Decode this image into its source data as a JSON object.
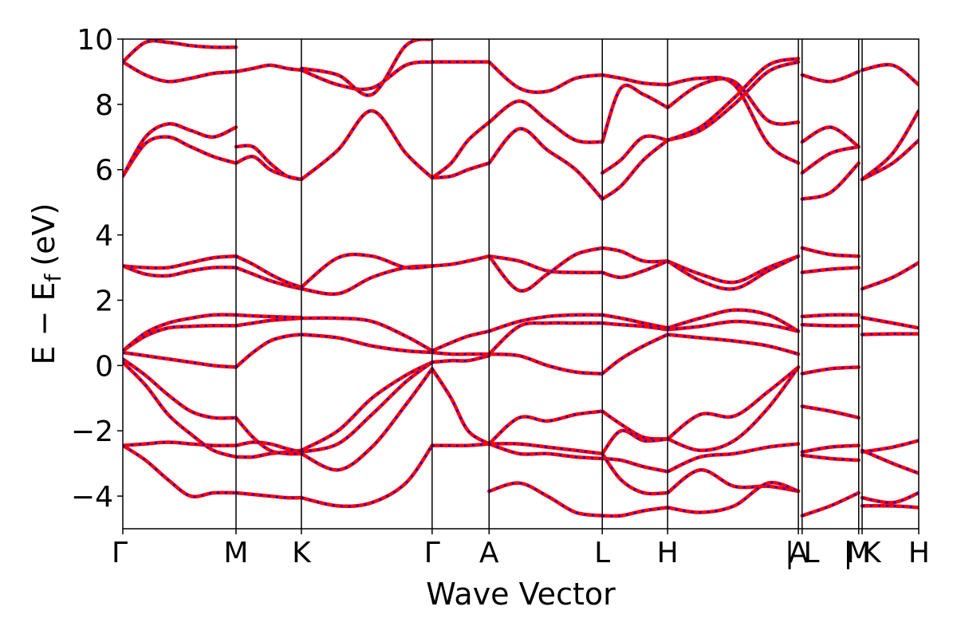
{
  "chart_data": {
    "type": "line",
    "title": "",
    "xlabel": "Wave Vector",
    "ylabel": "E − E",
    "ylabel_subscript": "f",
    "ylabel_unit": "(eV)",
    "ylim": [
      -5,
      10
    ],
    "yticks": [
      10,
      8,
      6,
      4,
      2,
      0,
      -2,
      -4
    ],
    "ytick_labels": [
      "10",
      "8",
      "6",
      "4",
      "2",
      "0",
      "−2",
      "−4"
    ],
    "k_points": [
      {
        "label": "Γ",
        "x": 0.0
      },
      {
        "label": "M",
        "x": 1.0
      },
      {
        "label": "K",
        "x": 1.577
      },
      {
        "label": "Γ",
        "x": 2.732
      },
      {
        "label": "A",
        "x": 3.235
      },
      {
        "label": "L",
        "x": 4.235
      },
      {
        "label": "H",
        "x": 4.812
      },
      {
        "label": "A",
        "x": 5.967
      },
      {
        "label": "| L",
        "x": 6.0
      },
      {
        "label": "M",
        "x": 6.5
      },
      {
        "label": "| K",
        "x": 6.53
      },
      {
        "label": "H",
        "x": 7.03
      }
    ],
    "xlim": [
      0,
      7.03
    ],
    "grid": false,
    "legend": "none",
    "colors": {
      "dft": "#ff0000",
      "wannier": "#0000ff"
    },
    "segments": [
      {
        "x": [
          0,
          0.2,
          0.4,
          0.6,
          0.8,
          1.0
        ],
        "bands": [
          [
            0.1,
            -0.6,
            -1.5,
            -2.1,
            -2.6,
            -2.8
          ],
          [
            0.2,
            -0.3,
            -0.9,
            -1.4,
            -1.6,
            -1.6
          ],
          [
            0.4,
            0.3,
            0.2,
            0.1,
            0.0,
            -0.05
          ],
          [
            0.45,
            0.9,
            1.15,
            1.2,
            1.22,
            1.22
          ],
          [
            0.45,
            1.0,
            1.3,
            1.45,
            1.55,
            1.55
          ],
          [
            3.05,
            2.8,
            2.75,
            2.9,
            3.0,
            3.0
          ],
          [
            3.05,
            3.0,
            3.0,
            3.15,
            3.3,
            3.35
          ],
          [
            5.8,
            6.8,
            7.0,
            6.7,
            6.4,
            6.2
          ],
          [
            5.8,
            7.0,
            7.4,
            7.2,
            7.0,
            7.3
          ],
          [
            9.3,
            8.9,
            8.7,
            8.8,
            8.95,
            9.0
          ],
          [
            9.3,
            9.9,
            9.9,
            9.8,
            9.75,
            9.75
          ],
          [
            -2.45,
            -2.4,
            -2.35,
            -2.4,
            -2.45,
            -2.45
          ],
          [
            -2.45,
            -2.9,
            -3.5,
            -4.0,
            -3.9,
            -3.9
          ]
        ]
      },
      {
        "x": [
          1.0,
          1.15,
          1.3,
          1.45,
          1.577
        ],
        "bands": [
          [
            -2.8,
            -2.8,
            -2.7,
            -2.65,
            -2.6
          ],
          [
            -2.45,
            -2.35,
            -2.4,
            -2.55,
            -2.65
          ],
          [
            -1.6,
            -2.2,
            -2.6,
            -2.7,
            -2.7
          ],
          [
            -0.05,
            0.4,
            0.75,
            0.9,
            0.95
          ],
          [
            1.22,
            1.3,
            1.38,
            1.42,
            1.45
          ],
          [
            1.55,
            1.52,
            1.5,
            1.48,
            1.47
          ],
          [
            3.0,
            2.8,
            2.6,
            2.45,
            2.35
          ],
          [
            3.35,
            3.1,
            2.8,
            2.55,
            2.4
          ],
          [
            6.2,
            6.4,
            6.0,
            5.8,
            5.7
          ],
          [
            6.7,
            6.7,
            6.2,
            5.8,
            5.7
          ],
          [
            9.0,
            9.1,
            9.2,
            9.1,
            9.05
          ],
          [
            -3.9,
            -3.95,
            -4.0,
            -4.05,
            -4.05
          ]
        ]
      },
      {
        "x": [
          1.577,
          1.9,
          2.2,
          2.5,
          2.732
        ],
        "bands": [
          [
            -2.6,
            -2.0,
            -1.0,
            -0.3,
            0.1
          ],
          [
            -2.65,
            -2.4,
            -1.5,
            -0.5,
            0.1
          ],
          [
            -2.7,
            -3.2,
            -2.5,
            -1.2,
            -0.1
          ],
          [
            0.95,
            0.85,
            0.6,
            0.45,
            0.4
          ],
          [
            1.45,
            1.45,
            1.35,
            0.9,
            0.45
          ],
          [
            2.35,
            2.2,
            2.7,
            3.0,
            3.05
          ],
          [
            2.4,
            3.3,
            3.35,
            3.0,
            3.05
          ],
          [
            5.7,
            6.6,
            7.8,
            6.5,
            5.75
          ],
          [
            9.05,
            8.6,
            8.5,
            9.2,
            9.3
          ],
          [
            9.1,
            8.9,
            8.3,
            9.8,
            10.0
          ],
          [
            -4.05,
            -4.3,
            -4.2,
            -3.6,
            -2.45
          ]
        ]
      },
      {
        "x": [
          2.732,
          2.9,
          3.05,
          3.235
        ],
        "bands": [
          [
            0.1,
            0.15,
            0.15,
            0.3
          ],
          [
            0.4,
            0.35,
            0.35,
            0.35
          ],
          [
            0.45,
            0.7,
            0.9,
            1.05
          ],
          [
            -2.45,
            -2.45,
            -2.45,
            -2.4
          ],
          [
            -0.1,
            -1.0,
            -2.0,
            -2.4
          ],
          [
            3.05,
            3.1,
            3.2,
            3.35
          ],
          [
            5.75,
            5.8,
            6.0,
            6.2
          ],
          [
            5.75,
            6.2,
            6.9,
            7.45
          ],
          [
            9.3,
            9.3,
            9.3,
            9.3
          ]
        ]
      },
      {
        "x": [
          3.235,
          3.5,
          3.75,
          4.0,
          4.235
        ],
        "bands": [
          [
            0.35,
            0.3,
            0.0,
            -0.2,
            -0.25
          ],
          [
            1.05,
            1.35,
            1.5,
            1.55,
            1.55
          ],
          [
            0.35,
            1.2,
            1.3,
            1.3,
            1.3
          ],
          [
            -2.4,
            -1.6,
            -1.7,
            -1.5,
            -1.4
          ],
          [
            -2.4,
            -2.4,
            -2.5,
            -2.6,
            -2.7
          ],
          [
            -2.4,
            -2.7,
            -2.7,
            -2.8,
            -2.85
          ],
          [
            -3.85,
            -3.6,
            -4.0,
            -4.5,
            -4.6
          ],
          [
            3.35,
            2.3,
            2.8,
            3.4,
            3.6
          ],
          [
            3.35,
            3.2,
            2.9,
            2.85,
            2.85
          ],
          [
            6.2,
            7.25,
            6.6,
            6.0,
            5.1
          ],
          [
            7.45,
            8.1,
            7.5,
            6.9,
            6.85
          ],
          [
            9.3,
            8.5,
            8.4,
            8.8,
            8.9
          ]
        ]
      },
      {
        "x": [
          4.235,
          4.4,
          4.6,
          4.812
        ],
        "bands": [
          [
            -0.25,
            0.2,
            0.6,
            0.95
          ],
          [
            1.3,
            1.25,
            1.2,
            1.1
          ],
          [
            1.55,
            1.45,
            1.3,
            1.15
          ],
          [
            -1.4,
            -1.8,
            -2.2,
            -2.25
          ],
          [
            -2.7,
            -2.0,
            -2.3,
            -2.25
          ],
          [
            -2.85,
            -2.9,
            -3.1,
            -3.25
          ],
          [
            -2.7,
            -3.5,
            -3.9,
            -3.9
          ],
          [
            -4.6,
            -4.6,
            -4.45,
            -4.35
          ],
          [
            3.6,
            3.5,
            3.2,
            3.2
          ],
          [
            2.85,
            2.7,
            2.9,
            3.2
          ],
          [
            5.1,
            5.5,
            6.3,
            6.9
          ],
          [
            5.9,
            6.3,
            7.0,
            6.9
          ],
          [
            6.85,
            8.5,
            8.3,
            7.9
          ],
          [
            8.9,
            8.8,
            8.65,
            8.6
          ]
        ]
      },
      {
        "x": [
          4.812,
          5.1,
          5.4,
          5.7,
          5.967
        ],
        "bands": [
          [
            0.95,
            0.85,
            0.75,
            0.6,
            0.35
          ],
          [
            1.1,
            1.2,
            1.35,
            1.25,
            1.05
          ],
          [
            1.15,
            1.45,
            1.7,
            1.55,
            1.05
          ],
          [
            -2.25,
            -1.5,
            -1.55,
            -0.8,
            -0.05
          ],
          [
            -2.25,
            -2.6,
            -2.3,
            -1.3,
            -0.05
          ],
          [
            -3.25,
            -2.8,
            -2.7,
            -2.5,
            -2.4
          ],
          [
            -3.9,
            -3.2,
            -3.7,
            -3.7,
            -3.85
          ],
          [
            -4.35,
            -4.5,
            -4.3,
            -3.6,
            -3.85
          ],
          [
            3.2,
            2.8,
            2.55,
            3.0,
            3.35
          ],
          [
            3.2,
            2.6,
            2.35,
            2.9,
            3.35
          ],
          [
            6.9,
            7.2,
            8.0,
            9.0,
            9.3
          ],
          [
            6.9,
            7.3,
            8.2,
            9.2,
            9.4
          ],
          [
            7.9,
            8.6,
            8.7,
            7.5,
            7.45
          ],
          [
            8.6,
            8.8,
            8.6,
            6.8,
            6.2
          ]
        ]
      },
      {
        "x": [
          6.0,
          6.25,
          6.5
        ],
        "bands": [
          [
            -0.25,
            -0.1,
            -0.05
          ],
          [
            1.5,
            1.55,
            1.55
          ],
          [
            1.25,
            1.22,
            1.22
          ],
          [
            -1.25,
            -1.4,
            -1.6
          ],
          [
            -2.65,
            -2.5,
            -2.45
          ],
          [
            -2.75,
            -2.85,
            -2.9
          ],
          [
            -4.6,
            -4.3,
            -3.9
          ],
          [
            3.6,
            3.4,
            3.35
          ],
          [
            2.85,
            2.95,
            3.0
          ],
          [
            5.1,
            5.3,
            6.2
          ],
          [
            6.85,
            7.3,
            6.7
          ],
          [
            5.9,
            6.5,
            6.7
          ],
          [
            8.9,
            8.7,
            9.0
          ]
        ]
      },
      {
        "x": [
          6.53,
          6.8,
          7.03
        ],
        "bands": [
          [
            0.95,
            0.97,
            0.97
          ],
          [
            1.47,
            1.3,
            1.15
          ],
          [
            2.35,
            2.7,
            3.15
          ],
          [
            -2.65,
            -2.5,
            -2.3
          ],
          [
            -2.6,
            -3.0,
            -3.3
          ],
          [
            -4.05,
            -4.2,
            -3.9
          ],
          [
            -4.3,
            -4.3,
            -4.35
          ],
          [
            5.7,
            6.2,
            6.9
          ],
          [
            5.7,
            6.5,
            7.8
          ],
          [
            9.05,
            9.2,
            8.6
          ]
        ]
      }
    ]
  }
}
